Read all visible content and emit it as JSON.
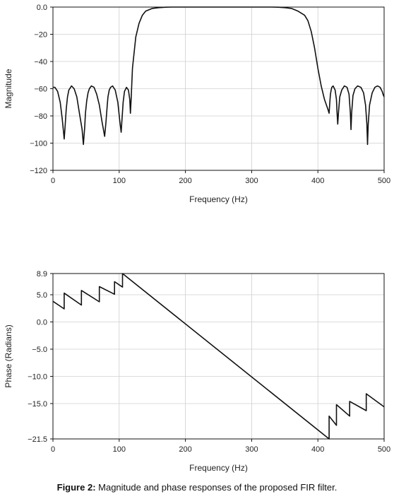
{
  "caption": {
    "label": "Figure 2:",
    "text": " Magnitude and phase responses of the proposed FIR filter."
  },
  "chart_data": [
    {
      "type": "line",
      "xlabel": "Frequency (Hz)",
      "ylabel": "Magnitude",
      "xlim": [
        0,
        500
      ],
      "ylim": [
        -120,
        0
      ],
      "x_ticks": [
        0,
        100,
        200,
        300,
        400,
        500
      ],
      "y_ticks": [
        0,
        -20,
        -40,
        -60,
        -80,
        -100,
        -120
      ],
      "x_tick_labels": [
        "0",
        "100",
        "200",
        "300",
        "400",
        "500"
      ],
      "y_tick_labels": [
        "0.0",
        "−20",
        "−40",
        "−60",
        "−80",
        "−100",
        "−120"
      ],
      "grid": true,
      "series": [
        {
          "x": [
            0,
            3,
            7,
            11,
            14,
            16,
            17,
            18,
            20,
            22,
            24,
            28,
            32,
            36,
            40,
            44,
            46,
            48,
            49,
            51,
            53,
            55,
            58,
            62,
            66,
            70,
            74,
            78,
            80,
            82,
            83,
            85,
            87,
            90,
            94,
            98,
            101,
            103,
            104,
            106,
            108,
            111,
            114,
            116,
            117,
            118,
            120,
            125,
            130,
            135,
            140,
            150,
            160,
            170,
            180,
            190,
            200,
            210,
            220,
            300,
            310,
            320,
            330,
            340,
            350,
            360,
            370,
            380,
            385,
            390,
            395,
            400,
            405,
            410,
            415,
            417,
            418,
            419,
            420,
            421,
            423,
            426,
            428,
            429,
            430,
            431,
            433,
            436,
            440,
            444,
            447,
            449,
            450,
            451,
            453,
            456,
            460,
            465,
            469,
            472,
            474,
            475,
            476,
            478,
            482,
            486,
            490,
            494,
            497,
            499,
            500
          ],
          "y": [
            -59,
            -59,
            -62,
            -70,
            -82,
            -92,
            -97,
            -90,
            -75,
            -66,
            -61,
            -58,
            -60,
            -66,
            -78,
            -90,
            -101,
            -88,
            -78,
            -69,
            -63,
            -60,
            -58,
            -59,
            -64,
            -72,
            -84,
            -95,
            -85,
            -72,
            -66,
            -61,
            -59,
            -58,
            -61,
            -70,
            -84,
            -92,
            -84,
            -70,
            -62,
            -59,
            -61,
            -68,
            -78,
            -68,
            -45,
            -22,
            -12,
            -6,
            -3,
            -1,
            -0.4,
            -0.1,
            0,
            0,
            0,
            0,
            0,
            0,
            0,
            0,
            0,
            -0.1,
            -0.4,
            -1,
            -3,
            -6,
            -10,
            -18,
            -30,
            -45,
            -58,
            -68,
            -75,
            -78,
            -70,
            -64,
            -61,
            -59,
            -58,
            -61,
            -68,
            -78,
            -86,
            -78,
            -66,
            -61,
            -58,
            -59,
            -64,
            -78,
            -90,
            -78,
            -65,
            -60,
            -58,
            -59,
            -63,
            -72,
            -86,
            -101,
            -86,
            -72,
            -63,
            -59,
            -58,
            -59,
            -62,
            -65,
            -66
          ]
        }
      ]
    },
    {
      "type": "line",
      "xlabel": "Frequency (Hz)",
      "ylabel": "Phase (Radians)",
      "xlim": [
        0,
        500
      ],
      "ylim": [
        -21.5,
        8.9
      ],
      "x_ticks": [
        0,
        100,
        200,
        300,
        400,
        500
      ],
      "y_ticks": [
        8.9,
        5.0,
        0.0,
        -5.0,
        -10.0,
        -15.0,
        -21.5
      ],
      "x_tick_labels": [
        "0",
        "100",
        "200",
        "300",
        "400",
        "500"
      ],
      "y_tick_labels": [
        "8.9",
        "5.0",
        "0.0",
        "−5.0",
        "−10.0",
        "−15.0",
        "−21.5"
      ],
      "grid": true,
      "series": [
        {
          "x": [
            0,
            17,
            17,
            43,
            43,
            70,
            70,
            93,
            93,
            105,
            105,
            417,
            417,
            428,
            428,
            448,
            448,
            473,
            473,
            500
          ],
          "y": [
            3.8,
            2.4,
            5.3,
            3.1,
            5.8,
            3.7,
            6.5,
            5.1,
            7.4,
            6.4,
            8.9,
            -21.5,
            -17.3,
            -19.0,
            -15.2,
            -17.3,
            -14.6,
            -16.3,
            -13.2,
            -15.6
          ]
        }
      ]
    }
  ]
}
